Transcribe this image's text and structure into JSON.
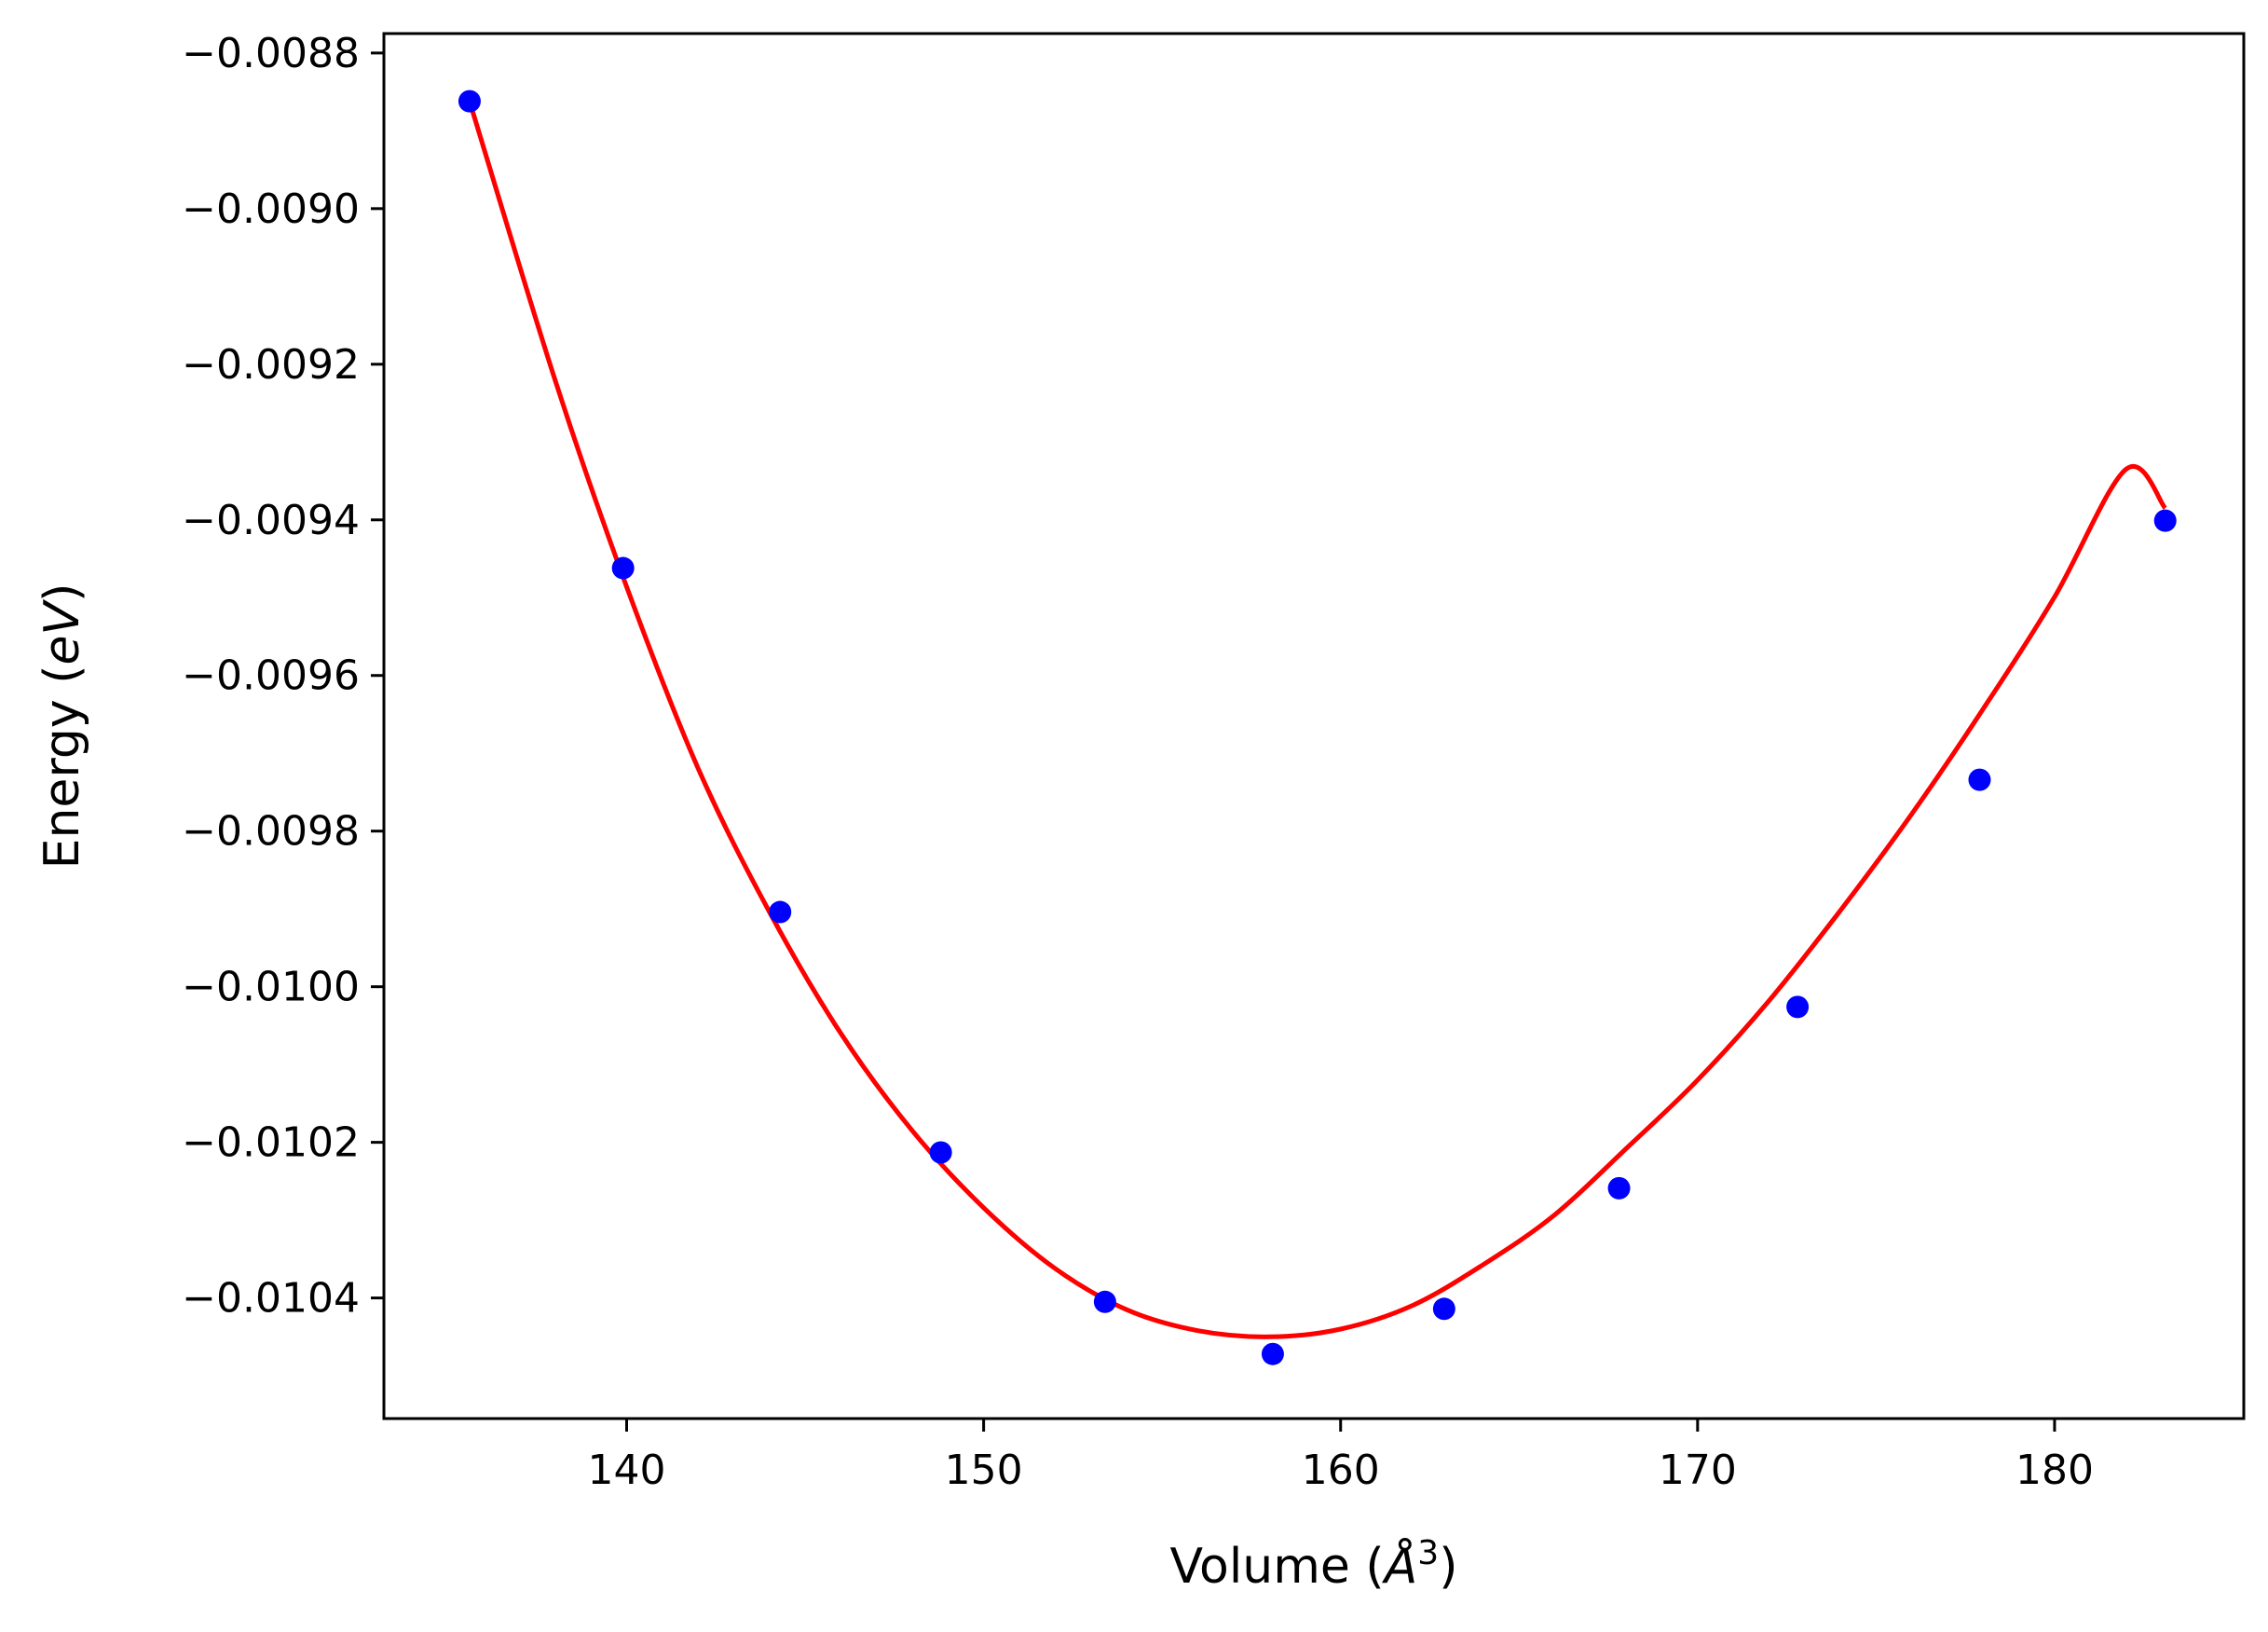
{
  "chart_data": {
    "type": "line",
    "title": "",
    "xlabel": "Volume (",
    "xlabel_symbol": "Å",
    "xlabel_exponent": "3",
    "xlabel_close": ")",
    "ylabel": "Energy (",
    "ylabel_unit": "eV",
    "ylabel_close": ")",
    "xlim": [
      133.2,
      185.3
    ],
    "ylim": [
      -0.010555,
      -0.008775
    ],
    "x_ticks": [
      {
        "value": 140,
        "label": "140"
      },
      {
        "value": 150,
        "label": "150"
      },
      {
        "value": 160,
        "label": "160"
      },
      {
        "value": 170,
        "label": "170"
      },
      {
        "value": 180,
        "label": "180"
      }
    ],
    "y_ticks": [
      {
        "value": -0.0088,
        "label": "−0.0088"
      },
      {
        "value": -0.009,
        "label": "−0.0090"
      },
      {
        "value": -0.0092,
        "label": "−0.0092"
      },
      {
        "value": -0.0094,
        "label": "−0.0094"
      },
      {
        "value": -0.0096,
        "label": "−0.0096"
      },
      {
        "value": -0.0098,
        "label": "−0.0098"
      },
      {
        "value": -0.01,
        "label": "−0.0100"
      },
      {
        "value": -0.0102,
        "label": "−0.0102"
      },
      {
        "value": -0.0104,
        "label": "−0.0104"
      }
    ],
    "grid": false,
    "legend": "none",
    "series": [
      {
        "kind": "scatter",
        "color": "#0000ff",
        "x": [
          135.6,
          139.9,
          144.3,
          148.8,
          153.4,
          158.1,
          162.9,
          167.8,
          172.8,
          177.9,
          183.1
        ],
        "y": [
          -0.008862,
          -0.009462,
          -0.009904,
          -0.010213,
          -0.010405,
          -0.010472,
          -0.010414,
          -0.010259,
          -0.010026,
          -0.009734,
          -0.009401
        ]
      },
      {
        "kind": "line",
        "color": "#ff0000",
        "x": [
          135.6,
          138.0,
          140.0,
          142.0,
          144.0,
          146.0,
          148.0,
          150.0,
          152.0,
          154.0,
          156.0,
          158.0,
          160.0,
          162.0,
          164.0,
          166.0,
          168.0,
          170.0,
          172.0,
          174.0,
          176.0,
          178.0,
          180.0,
          182.0,
          183.1
        ],
        "y": [
          -0.008862,
          -0.009221,
          -0.009486,
          -0.009719,
          -0.009904,
          -0.01006,
          -0.010185,
          -0.010284,
          -0.010362,
          -0.010415,
          -0.010442,
          -0.01045,
          -0.01044,
          -0.01041,
          -0.010357,
          -0.010293,
          -0.010208,
          -0.01012,
          -0.010018,
          -0.009902,
          -0.009778,
          -0.009643,
          -0.009499,
          -0.009335,
          -0.009385
        ]
      }
    ]
  }
}
